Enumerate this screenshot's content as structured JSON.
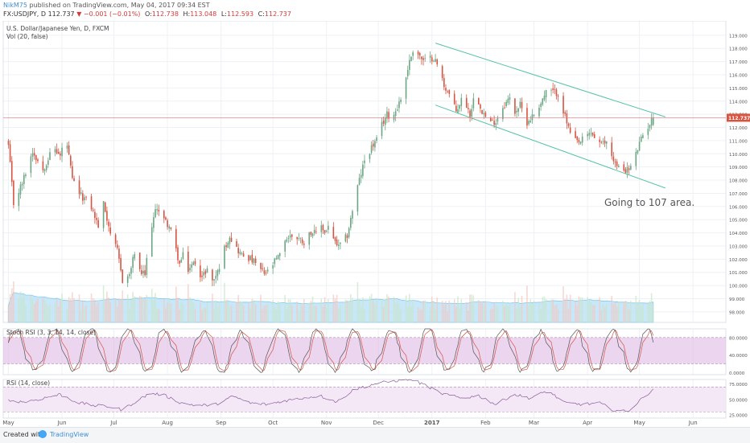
{
  "header": {
    "author": "NikM75",
    "published": "published on TradingView.com, May 04, 2017 09:34 EST",
    "symbol_line": "FX:USDJPY, D",
    "last": "112.737",
    "change": "−0.001 (−0.01%)",
    "open_label": "O:",
    "open": "112.738",
    "high_label": "H:",
    "high": "113.048",
    "low_label": "L:",
    "low": "112.593",
    "close_label": "C:",
    "close": "112.737"
  },
  "footer": {
    "created": "Created with",
    "brand": "TradingView"
  },
  "chart_data": {
    "type": "candlestick",
    "title": "U.S. Dollar/Japanese Yen, D, FXCM",
    "symbol": "FX:USDJPY",
    "timeframe": "D",
    "price_axis": {
      "ylim": [
        97.2,
        119.6
      ],
      "ticks": [
        "119.000",
        "118.000",
        "117.000",
        "116.000",
        "115.000",
        "114.000",
        "113.000",
        "112.000",
        "111.000",
        "110.000",
        "109.000",
        "108.000",
        "107.000",
        "106.000",
        "105.000",
        "104.000",
        "103.000",
        "102.000",
        "101.000",
        "100.000",
        "99.000",
        "98.000"
      ],
      "tick_values": [
        119,
        118,
        117,
        116,
        115,
        114,
        113,
        112,
        111,
        110,
        109,
        108,
        107,
        106,
        105,
        104,
        103,
        102,
        101,
        100,
        99,
        98
      ],
      "last_price_label": "112.737",
      "last_price": 112.737
    },
    "time_axis": {
      "labels": [
        "May",
        "Jun",
        "Jul",
        "Aug",
        "Sep",
        "Oct",
        "Nov",
        "Dec",
        "2017",
        "Feb",
        "Mar",
        "Apr",
        "May",
        "Jun"
      ],
      "label_days": [
        0,
        31,
        61,
        92,
        123,
        153,
        184,
        214,
        245,
        276,
        304,
        335,
        365,
        396
      ],
      "xlim": [
        -3,
        415
      ]
    },
    "price_anchors": [
      [
        0,
        110.6
      ],
      [
        3,
        106.2
      ],
      [
        8,
        107.8
      ],
      [
        14,
        110.2
      ],
      [
        20,
        108.8
      ],
      [
        26,
        110.5
      ],
      [
        30,
        109.8
      ],
      [
        33,
        111.5
      ],
      [
        37,
        108.0
      ],
      [
        42,
        106.8
      ],
      [
        47,
        106.3
      ],
      [
        52,
        104.5
      ],
      [
        55,
        106.2
      ],
      [
        60,
        103.5
      ],
      [
        63,
        102.6
      ],
      [
        66,
        100.4
      ],
      [
        70,
        100.8
      ],
      [
        73,
        102.5
      ],
      [
        76,
        101.0
      ],
      [
        79,
        100.8
      ],
      [
        82,
        104.2
      ],
      [
        86,
        106.0
      ],
      [
        90,
        105.0
      ],
      [
        93,
        104.5
      ],
      [
        96,
        103.2
      ],
      [
        99,
        101.6
      ],
      [
        102,
        102.6
      ],
      [
        104,
        101.2
      ],
      [
        108,
        101.8
      ],
      [
        112,
        100.6
      ],
      [
        115,
        101.3
      ],
      [
        118,
        100.3
      ],
      [
        121,
        101.0
      ],
      [
        124,
        102.5
      ],
      [
        128,
        103.8
      ],
      [
        131,
        103.0
      ],
      [
        135,
        102.3
      ],
      [
        138,
        102.2
      ],
      [
        142,
        101.8
      ],
      [
        145,
        101.3
      ],
      [
        148,
        100.9
      ],
      [
        151,
        101.1
      ],
      [
        154,
        101.8
      ],
      [
        157,
        102.3
      ],
      [
        160,
        103.5
      ],
      [
        164,
        103.8
      ],
      [
        168,
        103.6
      ],
      [
        171,
        103.3
      ],
      [
        175,
        104.1
      ],
      [
        178,
        103.9
      ],
      [
        181,
        104.6
      ],
      [
        183,
        104.0
      ],
      [
        185,
        104.5
      ],
      [
        187,
        103.5
      ],
      [
        189,
        103.3
      ],
      [
        191,
        102.9
      ],
      [
        196,
        103.8
      ],
      [
        199,
        105.7
      ],
      [
        202,
        107.5
      ],
      [
        206,
        109.5
      ],
      [
        210,
        110.5
      ],
      [
        213,
        111.0
      ],
      [
        216,
        112.2
      ],
      [
        219,
        113.0
      ],
      [
        222,
        112.7
      ],
      [
        225,
        113.6
      ],
      [
        228,
        114.5
      ],
      [
        231,
        116.5
      ],
      [
        234,
        117.9
      ],
      [
        237,
        117.6
      ],
      [
        240,
        117.0
      ],
      [
        243,
        117.2
      ],
      [
        246,
        117.3
      ],
      [
        249,
        116.5
      ],
      [
        252,
        115.2
      ],
      [
        255,
        114.5
      ],
      [
        259,
        113.2
      ],
      [
        263,
        114.4
      ],
      [
        267,
        113.0
      ],
      [
        270,
        114.7
      ],
      [
        274,
        113.3
      ],
      [
        278,
        112.3
      ],
      [
        282,
        112.5
      ],
      [
        286,
        113.6
      ],
      [
        290,
        114.2
      ],
      [
        293,
        113.2
      ],
      [
        296,
        113.7
      ],
      [
        300,
        112.4
      ],
      [
        304,
        113.0
      ],
      [
        308,
        113.9
      ],
      [
        312,
        114.9
      ],
      [
        315,
        114.7
      ],
      [
        318,
        114.6
      ],
      [
        322,
        112.8
      ],
      [
        326,
        111.1
      ],
      [
        330,
        110.8
      ],
      [
        334,
        111.3
      ],
      [
        337,
        111.6
      ],
      [
        340,
        111.1
      ],
      [
        343,
        110.7
      ],
      [
        346,
        110.9
      ],
      [
        349,
        109.9
      ],
      [
        352,
        109.0
      ],
      [
        356,
        108.8
      ],
      [
        359,
        108.8
      ],
      [
        362,
        109.5
      ],
      [
        364,
        110.4
      ],
      [
        367,
        111.4
      ],
      [
        370,
        112.1
      ],
      [
        373,
        112.737
      ]
    ],
    "trendlines": [
      {
        "name": "upper channel",
        "points": [
          [
            247,
            118.4
          ],
          [
            380,
            112.8
          ]
        ]
      },
      {
        "name": "lower channel",
        "points": [
          [
            247,
            113.7
          ],
          [
            380,
            107.4
          ]
        ]
      },
      {
        "name": "last price line",
        "points": [
          [
            -3,
            112.737
          ],
          [
            415,
            112.737
          ]
        ]
      }
    ],
    "annotation": "Going to 107 area.",
    "volume": {
      "name": "Vol (20, false)",
      "scale_max": 2.5,
      "moving_average_level": 1.0
    },
    "stoch_rsi": {
      "name": "Stoch RSI (3, 3, 14, 14, close)",
      "ticks": [
        "80.0000",
        "40.0000",
        "0.0000"
      ],
      "tick_values": [
        80,
        40,
        0
      ],
      "ylim": [
        -5,
        100
      ],
      "bands": [
        20,
        80
      ]
    },
    "rsi": {
      "name": "RSI (14, close)",
      "ticks": [
        "75.0000",
        "50.0000",
        "25.0000"
      ],
      "tick_values": [
        75,
        50,
        25
      ],
      "ylim": [
        20,
        82
      ],
      "bands": [
        30,
        70
      ],
      "anchors": [
        [
          0,
          48
        ],
        [
          10,
          46
        ],
        [
          20,
          52
        ],
        [
          30,
          58
        ],
        [
          40,
          45
        ],
        [
          50,
          40
        ],
        [
          60,
          38
        ],
        [
          66,
          33
        ],
        [
          72,
          44
        ],
        [
          82,
          60
        ],
        [
          90,
          57
        ],
        [
          100,
          44
        ],
        [
          110,
          40
        ],
        [
          120,
          42
        ],
        [
          130,
          55
        ],
        [
          140,
          44
        ],
        [
          150,
          42
        ],
        [
          160,
          48
        ],
        [
          170,
          52
        ],
        [
          180,
          56
        ],
        [
          190,
          46
        ],
        [
          200,
          66
        ],
        [
          212,
          75
        ],
        [
          224,
          80
        ],
        [
          232,
          83
        ],
        [
          242,
          72
        ],
        [
          250,
          60
        ],
        [
          262,
          52
        ],
        [
          272,
          56
        ],
        [
          282,
          42
        ],
        [
          292,
          58
        ],
        [
          302,
          52
        ],
        [
          312,
          64
        ],
        [
          322,
          44
        ],
        [
          332,
          42
        ],
        [
          342,
          44
        ],
        [
          350,
          33
        ],
        [
          358,
          30
        ],
        [
          366,
          50
        ],
        [
          373,
          67
        ]
      ]
    },
    "colors": {
      "up": "#6ba583",
      "down": "#d75442",
      "volume": "#a8d5f0",
      "volume_ma": "#4fb3e8",
      "channel": "#57c3a8",
      "last_price": "#e57373",
      "stoch_k": "#555555",
      "stoch_d": "#d75442",
      "rsi": "#8a5a9a",
      "band_fill": "#e1bee7"
    },
    "grid": true
  }
}
